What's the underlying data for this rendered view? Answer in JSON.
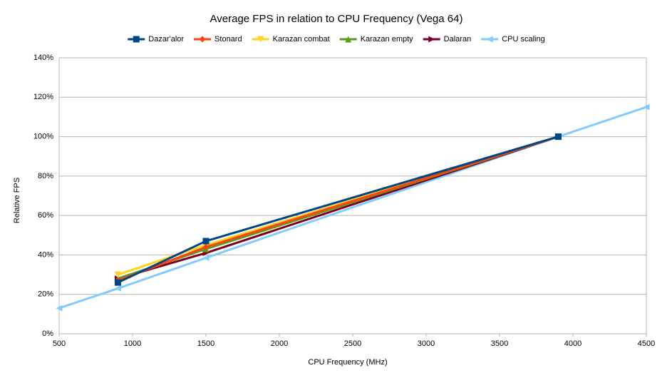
{
  "chart_data": {
    "type": "line",
    "title": "Average FPS in relation to CPU Frequency (Vega 64)",
    "x_label": "CPU Frequency (MHz)",
    "y_label": "Relative FPS",
    "series": [
      {
        "name": "Dazar'alor",
        "color": "#004586",
        "marker": "square",
        "x": [
          900,
          1500,
          3900
        ],
        "values": [
          26,
          47,
          100
        ]
      },
      {
        "name": "Stonard",
        "color": "#ff420e",
        "marker": "diamond",
        "x": [
          900,
          1500,
          3900
        ],
        "values": [
          27,
          44,
          100
        ]
      },
      {
        "name": "Karazan combat",
        "color": "#ffd320",
        "marker": "triangle-down",
        "x": [
          900,
          1500,
          3900
        ],
        "values": [
          30,
          45,
          100
        ]
      },
      {
        "name": "Karazan empty",
        "color": "#579d1c",
        "marker": "triangle-up",
        "x": [
          900,
          1500,
          3900
        ],
        "values": [
          28,
          43,
          100
        ]
      },
      {
        "name": "Dalaran",
        "color": "#7e0021",
        "marker": "triangle-right",
        "x": [
          900,
          1500,
          3900
        ],
        "values": [
          28,
          41,
          100
        ]
      },
      {
        "name": "CPU scaling",
        "color": "#83caff",
        "marker": "triangle-left",
        "x": [
          500,
          900,
          1500,
          3900,
          4500
        ],
        "values": [
          13,
          23,
          38.5,
          100,
          115
        ]
      }
    ],
    "xlim": [
      500,
      4500
    ],
    "xticks": [
      500,
      1000,
      1500,
      2000,
      2500,
      3000,
      3500,
      4000,
      4500
    ],
    "ylim": [
      0,
      140
    ],
    "yticks": [
      {
        "value": 0,
        "label": "0%"
      },
      {
        "value": 20,
        "label": "20%"
      },
      {
        "value": 40,
        "label": "40%"
      },
      {
        "value": 60,
        "label": "60%"
      },
      {
        "value": 80,
        "label": "80%"
      },
      {
        "value": 100,
        "label": "100%"
      },
      {
        "value": 120,
        "label": "120%"
      },
      {
        "value": 140,
        "label": "140%"
      }
    ],
    "grid": true,
    "legend": "top"
  }
}
